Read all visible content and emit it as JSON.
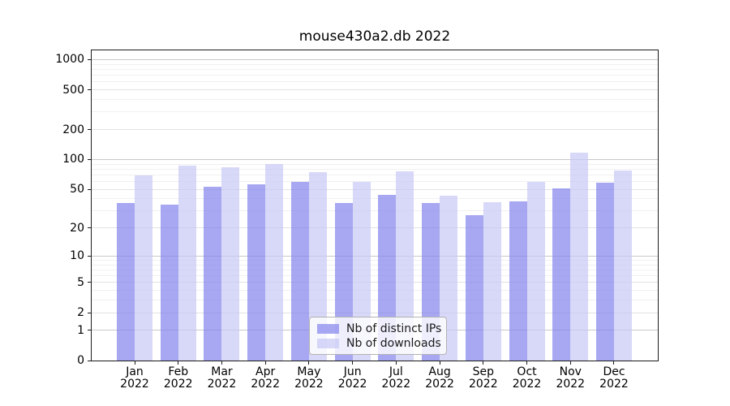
{
  "chart_data": {
    "type": "bar",
    "title": "mouse430a2.db 2022",
    "categories": [
      "Jan 2022",
      "Feb 2022",
      "Mar 2022",
      "Apr 2022",
      "May 2022",
      "Jun 2022",
      "Jul 2022",
      "Aug 2022",
      "Sep 2022",
      "Oct 2022",
      "Nov 2022",
      "Dec 2022"
    ],
    "series": [
      {
        "name": "Nb of distinct IPs",
        "color": "rgba(131,131,236,0.7)",
        "values": [
          36,
          35,
          53,
          56,
          59,
          36,
          44,
          36,
          27,
          38,
          51,
          58
        ]
      },
      {
        "name": "Nb of downloads",
        "color": "rgba(199,199,245,0.7)",
        "values": [
          69,
          86,
          84,
          90,
          74,
          59,
          76,
          43,
          37,
          60,
          117,
          77
        ]
      }
    ],
    "yscale": "log(value+1)",
    "y_tick_values": [
      1000,
      500,
      200,
      100,
      50,
      20,
      10,
      5,
      2,
      1,
      0
    ],
    "y_tick_labels": [
      "1000",
      "500",
      "200",
      "100",
      "50",
      "20",
      "10",
      "5",
      "2",
      "1",
      "0"
    ],
    "ylim": [
      0,
      1240
    ],
    "grid": true,
    "legend_position": "lower center",
    "colors": {
      "major_gridline": "#c9c9c9",
      "labeled_gridline": "#e2e2e2",
      "minor_gridline": "#f0f0f0",
      "axis": "#1a1a1a"
    }
  }
}
